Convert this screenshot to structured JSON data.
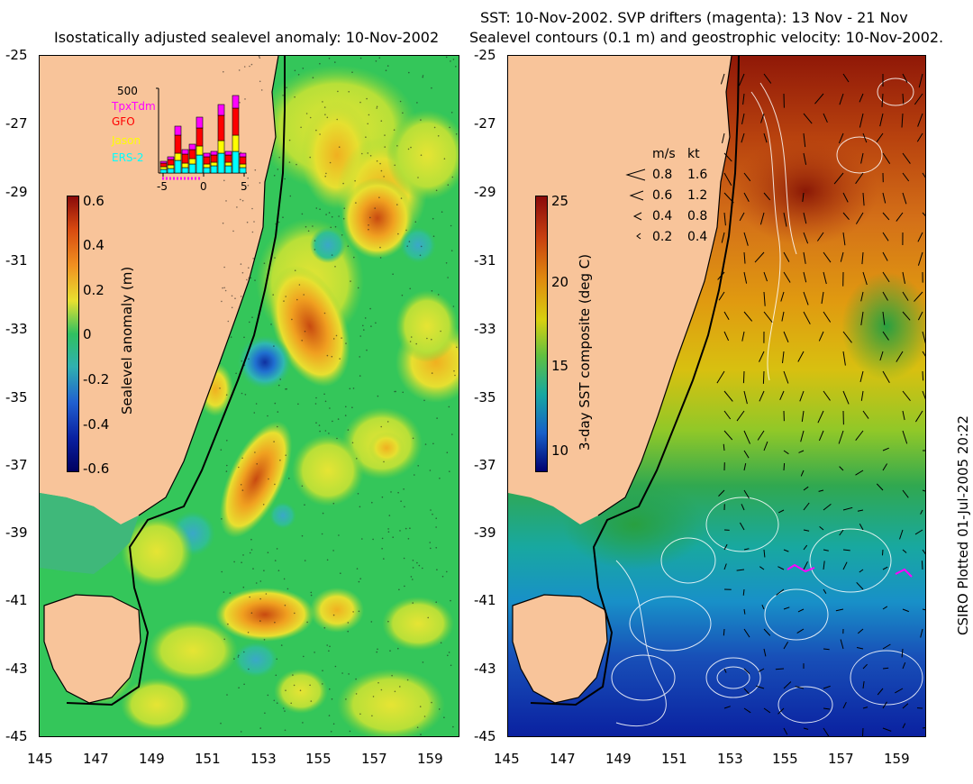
{
  "left_panel": {
    "title": "Isostatically adjusted sealevel anomaly: 10-Nov-2002",
    "y_ticks": [
      "-25",
      "-27",
      "-29",
      "-31",
      "-33",
      "-35",
      "-37",
      "-39",
      "-41",
      "-43",
      "-45"
    ],
    "x_ticks": [
      "145",
      "147",
      "149",
      "151",
      "153",
      "155",
      "157",
      "159"
    ],
    "colorbar": {
      "label": "Sealevel anomaly (m)",
      "ticks": [
        "0.6",
        "0.4",
        "0.2",
        "0",
        "-0.2",
        "-0.4",
        "-0.6"
      ]
    },
    "inset": {
      "y_label": "500",
      "legend": [
        {
          "name": "TpxTdm",
          "color": "#ff00ff"
        },
        {
          "name": "GFO",
          "color": "#ff0000"
        },
        {
          "name": "Jason",
          "color": "#ffff00"
        },
        {
          "name": "ERS-2",
          "color": "#00ffff"
        }
      ],
      "x_ticks": [
        "-5",
        "0",
        "5"
      ]
    }
  },
  "right_panel": {
    "title_line1": "SST: 10-Nov-2002. SVP drifters (magenta): 13 Nov - 21 Nov",
    "title_line2": "Sealevel contours (0.1 m) and geostrophic velocity: 10-Nov-2002.",
    "y_ticks": [
      "-25",
      "-27",
      "-29",
      "-31",
      "-33",
      "-35",
      "-37",
      "-39",
      "-41",
      "-43",
      "-45"
    ],
    "x_ticks": [
      "145",
      "147",
      "149",
      "151",
      "153",
      "155",
      "157",
      "159"
    ],
    "colorbar": {
      "label": "3-day SST composite (deg C)",
      "ticks": [
        "25",
        "20",
        "15",
        "10"
      ]
    },
    "velocity_legend": {
      "header_ms": "m/s",
      "header_kt": "kt",
      "rows": [
        {
          "ms": "0.8",
          "kt": "1.6"
        },
        {
          "ms": "0.6",
          "kt": "1.2"
        },
        {
          "ms": "0.4",
          "kt": "0.8"
        },
        {
          "ms": "0.2",
          "kt": "0.4"
        }
      ]
    }
  },
  "credit": "CSIRO Plotted 01-Jul-2005 20:22",
  "colors": {
    "land": "#f8c49a",
    "sla_mid": "#33c75a",
    "coast": "#000000"
  }
}
